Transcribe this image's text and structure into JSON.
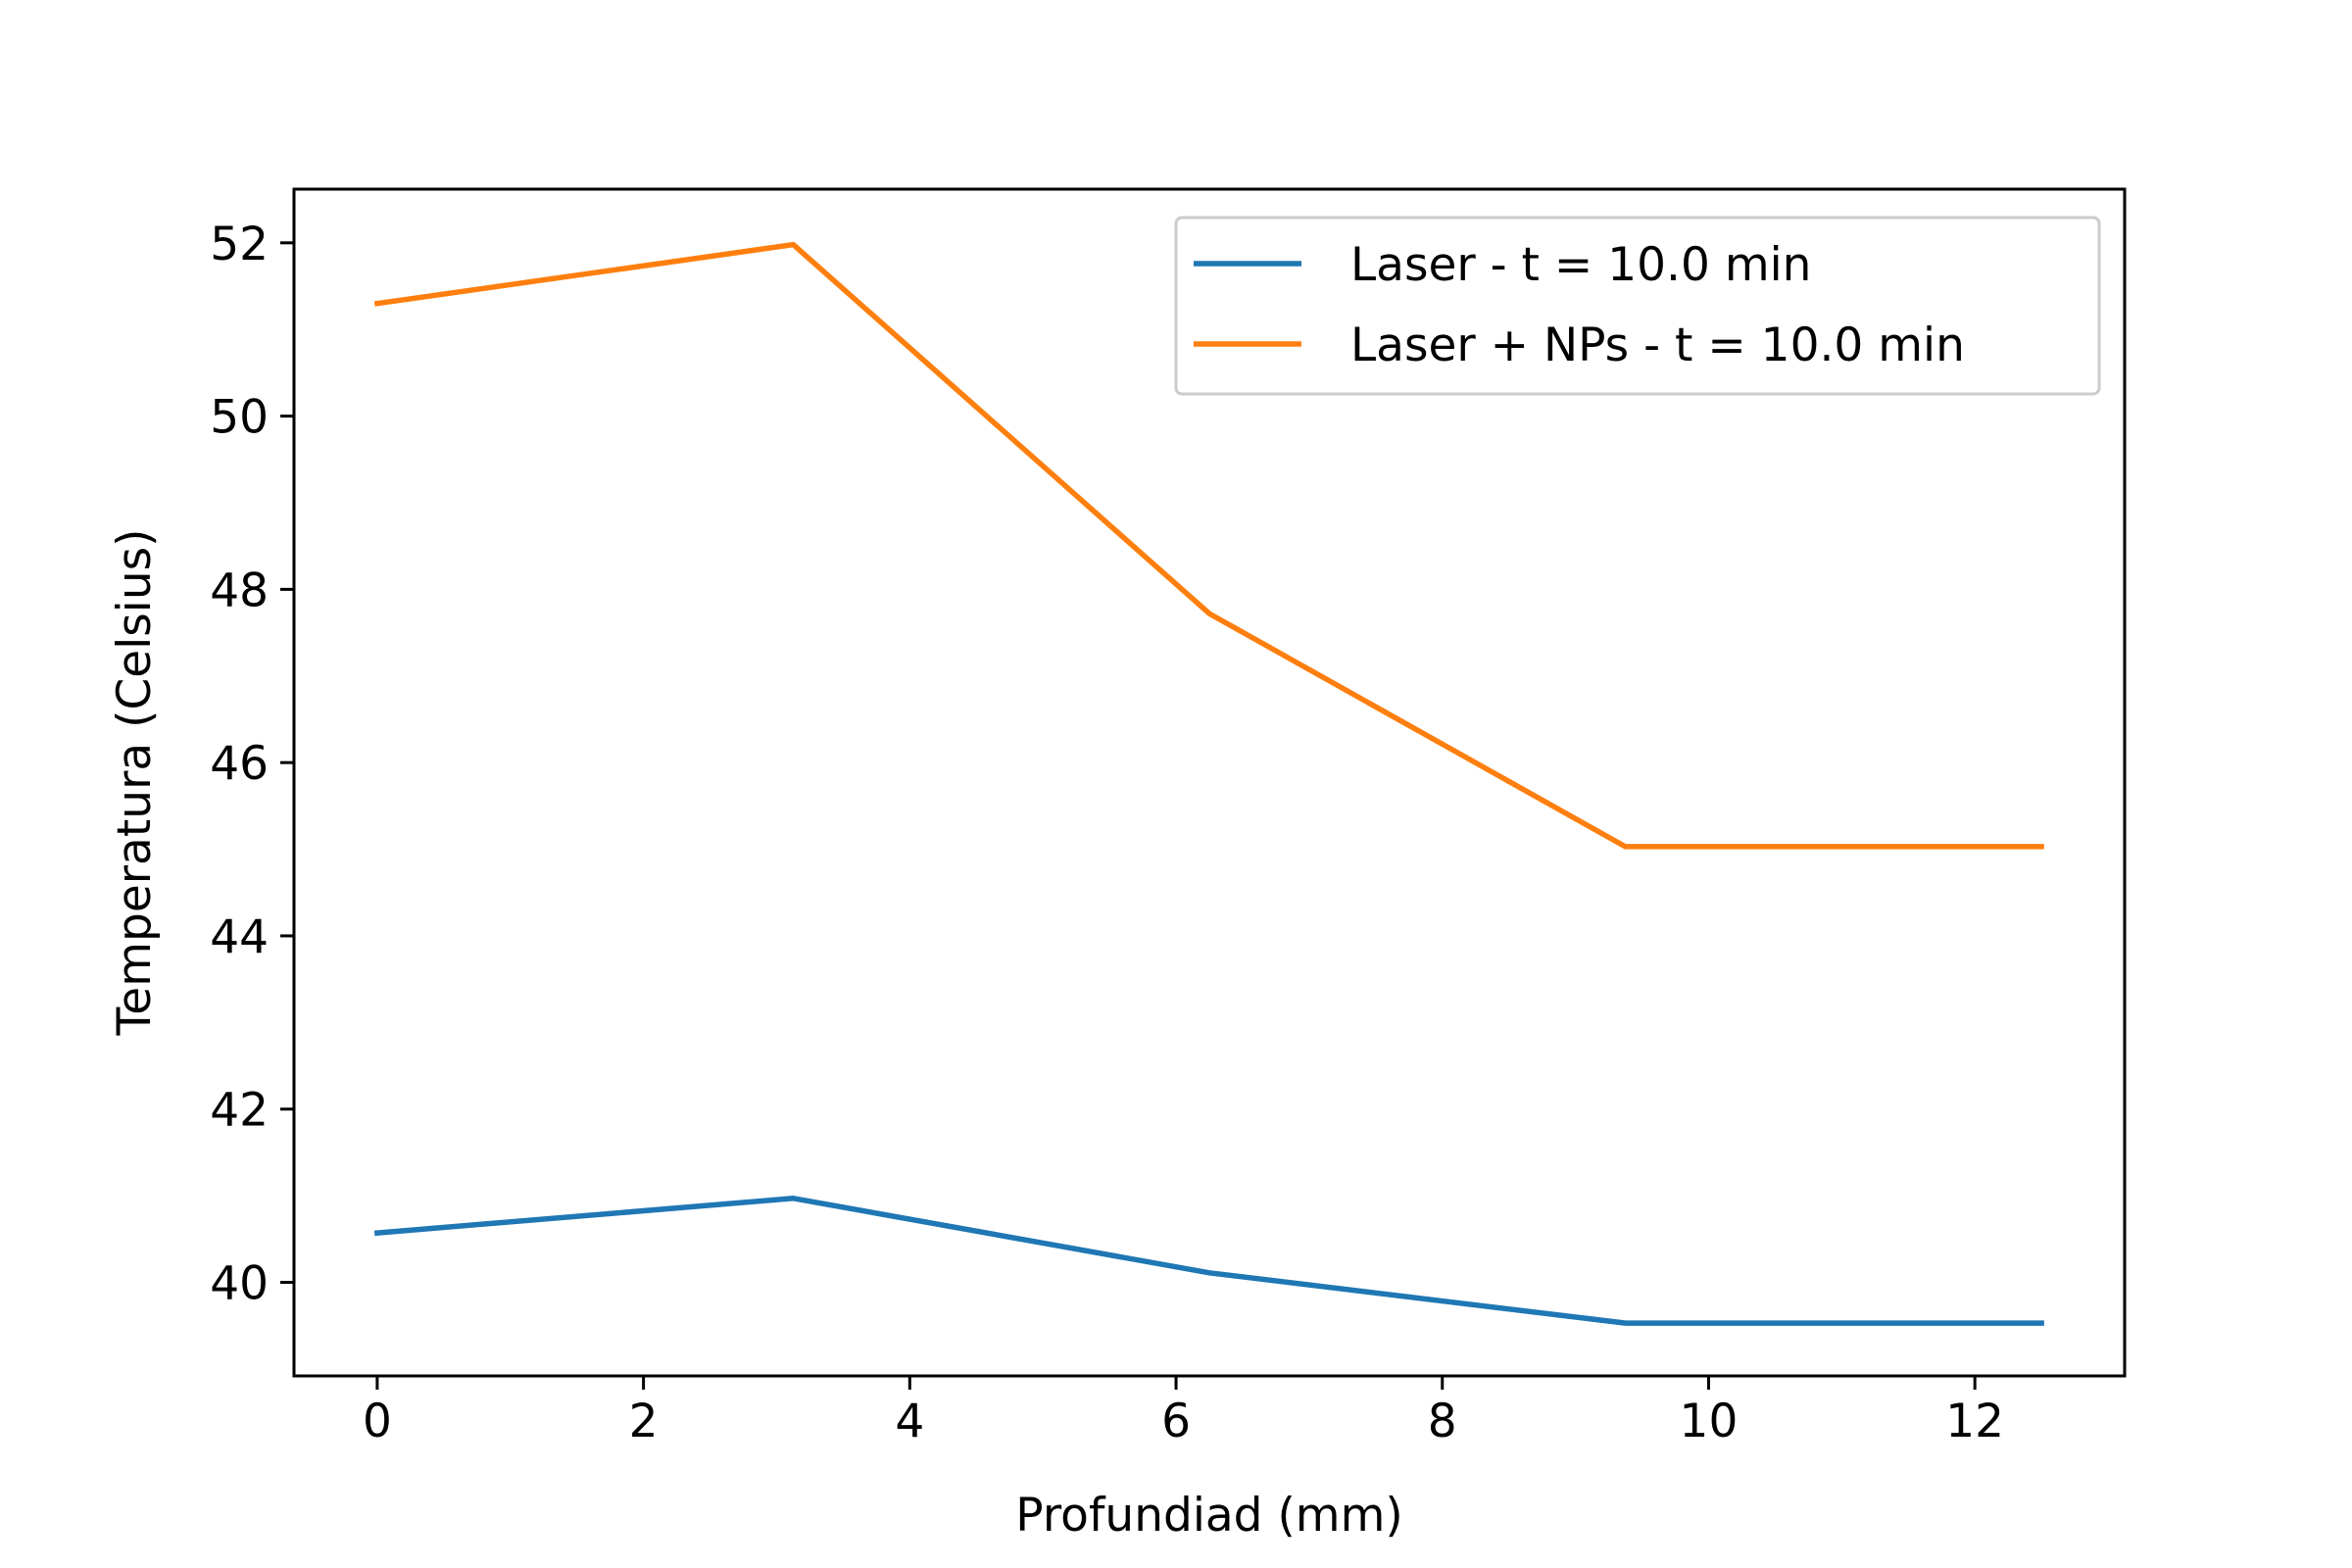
{
  "chart_data": {
    "type": "line",
    "title": "",
    "xlabel": "Profundiad (mm)",
    "ylabel": "Temperatura (Celsius)",
    "xlim": [
      -0.625,
      13.125
    ],
    "ylim": [
      38.92,
      52.62
    ],
    "xticks": [
      0,
      2,
      4,
      6,
      8,
      10,
      12
    ],
    "yticks": [
      40,
      42,
      44,
      46,
      48,
      50,
      52
    ],
    "x": [
      0,
      3.125,
      6.25,
      9.375,
      12.5
    ],
    "series": [
      {
        "name": "Laser - t = 10.0 min",
        "color": "#1f77b4",
        "values": [
          40.57,
          40.97,
          40.11,
          39.53,
          39.53
        ]
      },
      {
        "name": "Laser + NPs - t = 10.0 min",
        "color": "#ff7f0e",
        "values": [
          51.3,
          51.98,
          47.72,
          45.03,
          45.03
        ]
      }
    ],
    "grid": false,
    "legend_position": "top-right"
  }
}
